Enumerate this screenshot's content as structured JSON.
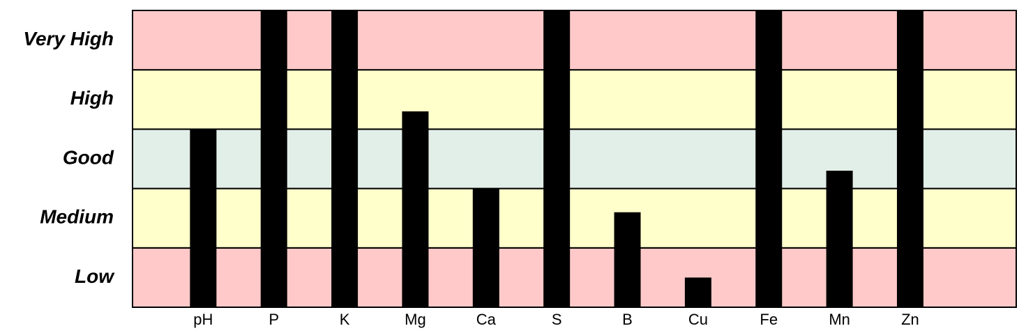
{
  "chart_data": {
    "type": "bar",
    "categories": [
      "pH",
      "P",
      "K",
      "Mg",
      "Ca",
      "S",
      "B",
      "Cu",
      "Fe",
      "Mn",
      "Zn"
    ],
    "values": [
      3.0,
      5,
      5,
      3.3,
      2.0,
      5,
      1.6,
      0.5,
      5,
      2.3,
      5
    ],
    "color": "#000000",
    "ylim": [
      0,
      5
    ],
    "bands": [
      {
        "label": "Low",
        "from": 0,
        "to": 1,
        "color": "#ffc9c9"
      },
      {
        "label": "Medium",
        "from": 1,
        "to": 2,
        "color": "#ffffcc"
      },
      {
        "label": "Good",
        "from": 2,
        "to": 3,
        "color": "#e2eee8"
      },
      {
        "label": "High",
        "from": 3,
        "to": 4,
        "color": "#ffffcc"
      },
      {
        "label": "Very High",
        "from": 4,
        "to": 5,
        "color": "#ffc9c9"
      }
    ]
  }
}
